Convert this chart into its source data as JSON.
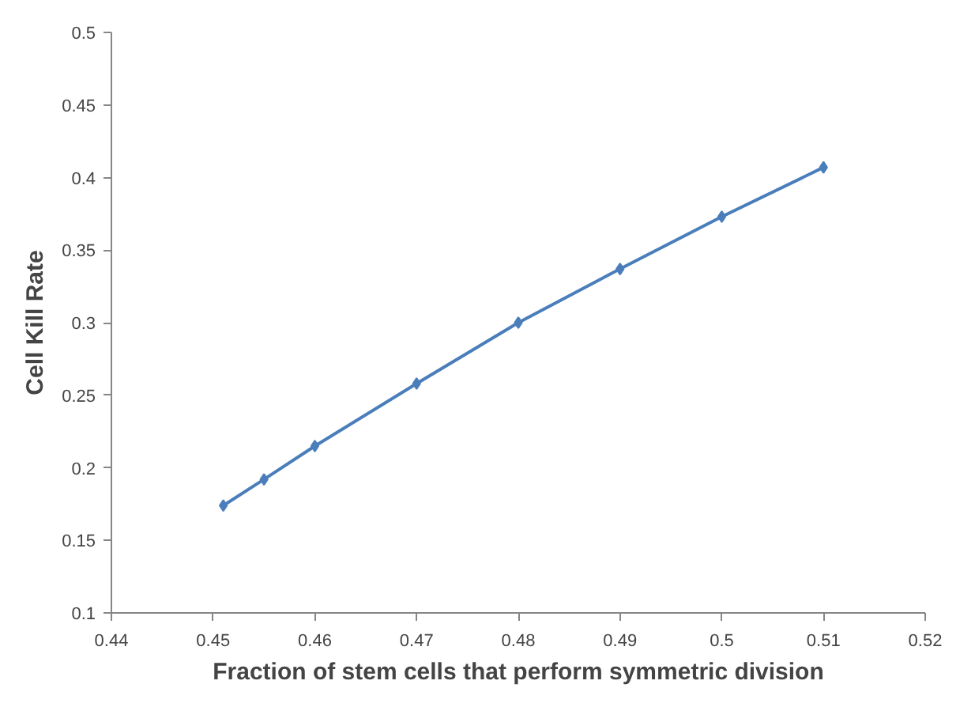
{
  "chart_data": {
    "type": "line",
    "xlabel": "Fraction of stem cells that perform symmetric division",
    "ylabel": "Cell Kill Rate",
    "x": [
      0.451,
      0.455,
      0.46,
      0.47,
      0.48,
      0.49,
      0.5,
      0.51
    ],
    "series": [
      {
        "color": "#4a7ebb",
        "values": [
          0.174,
          0.192,
          0.215,
          0.258,
          0.3,
          0.337,
          0.373,
          0.407
        ]
      }
    ],
    "xlim": [
      0.44,
      0.52
    ],
    "xticks": [
      0.44,
      0.45,
      0.46,
      0.47,
      0.48,
      0.49,
      0.5,
      0.51,
      0.52
    ],
    "ylim": [
      0.1,
      0.5
    ],
    "yticks": [
      0.1,
      0.15,
      0.2,
      0.25,
      0.3,
      0.35,
      0.4,
      0.45,
      0.5
    ],
    "grid": false,
    "marker": "diamond",
    "line_style": "solid"
  }
}
